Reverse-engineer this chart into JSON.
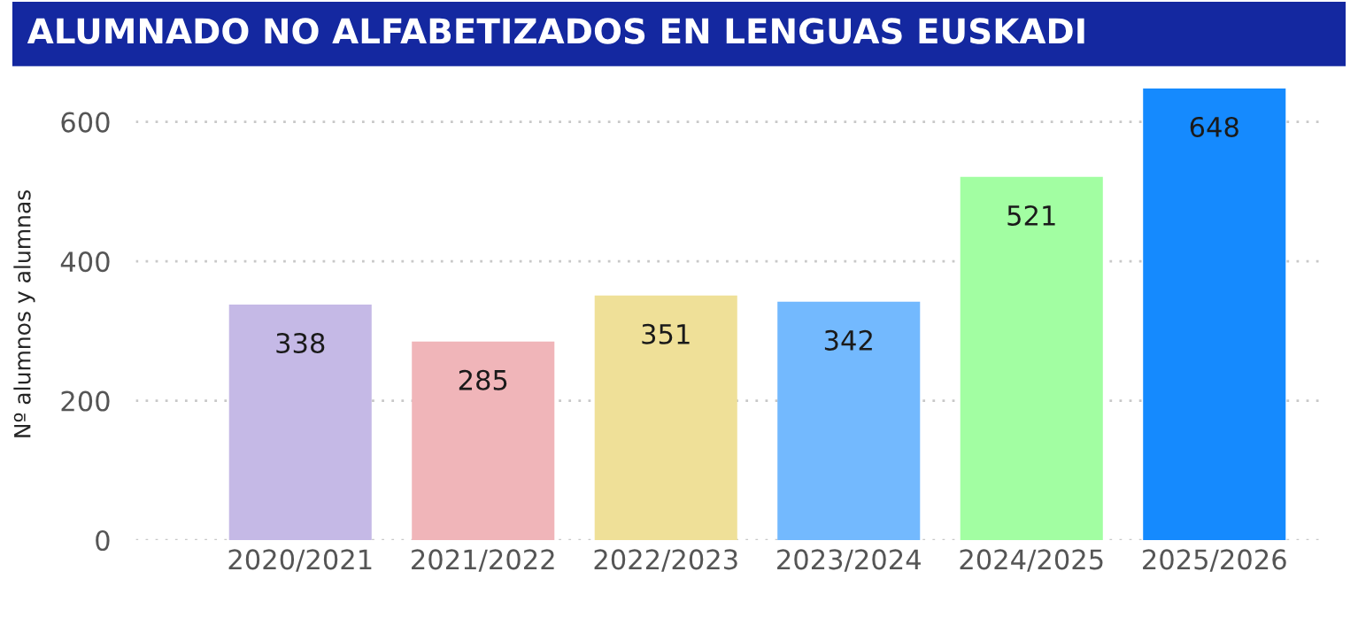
{
  "chart_data": {
    "type": "bar",
    "title": "ALUMNADO NO ALFABETIZADOS EN LENGUAS EUSKADI",
    "ylabel": "Nº alumnos y alumnas",
    "categories": [
      "2020/2021",
      "2021/2022",
      "2022/2023",
      "2023/2024",
      "2024/2025",
      "2025/2026"
    ],
    "values": [
      338,
      285,
      351,
      342,
      521,
      648
    ],
    "colors": [
      "#c5b9e6",
      "#f0b5b9",
      "#efe098",
      "#73b9fe",
      "#a2fea2",
      "#158afe"
    ],
    "ylim": [
      0,
      648
    ],
    "yticks": [
      0,
      200,
      400,
      600
    ],
    "grid": "y",
    "data_labels": true
  }
}
